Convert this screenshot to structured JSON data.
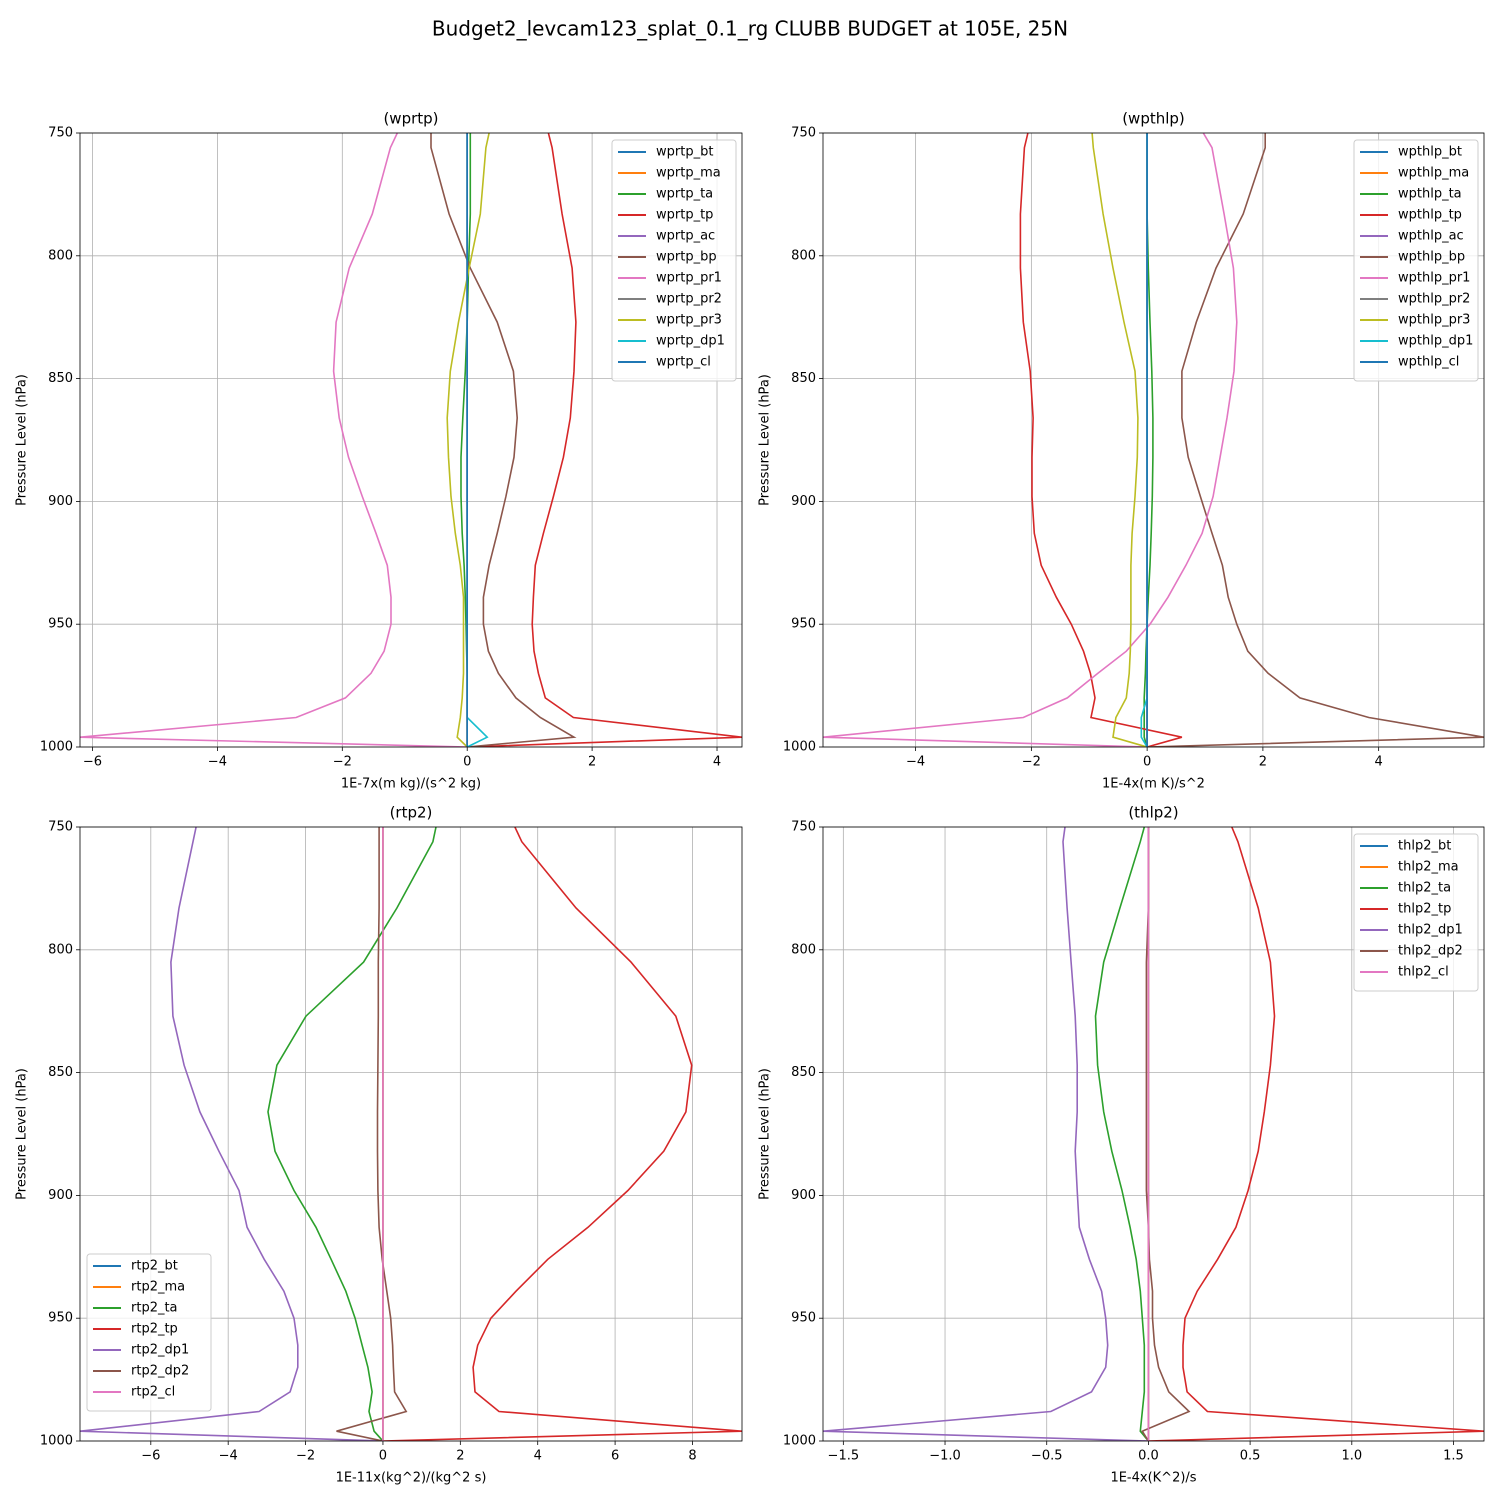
{
  "title": "Budget2_levcam123_splat_0.1_rg CLUBB BUDGET at 105E, 25N",
  "chart_data": [
    {
      "type": "line",
      "title": "(wprtp)",
      "xlabel": "1E-7x(m kg)/(s^2 kg)",
      "ylabel": "Pressure Level (hPa)",
      "grid": true,
      "legend": "upper right",
      "xlim": [
        -6.2,
        4.4
      ],
      "xticks": [
        {
          "value": -6,
          "label": "−6"
        },
        {
          "value": -4,
          "label": "−4"
        },
        {
          "value": -2,
          "label": "−2"
        },
        0,
        2,
        4
      ],
      "ylim": [
        1000,
        750
      ],
      "yticks": [
        750,
        800,
        850,
        900,
        950,
        1000
      ],
      "levels": [
        750,
        756,
        783,
        805,
        827,
        847,
        866,
        882,
        898,
        913,
        926,
        939,
        950,
        961,
        970,
        980,
        988,
        996,
        1000
      ],
      "series": [
        {
          "name": "wprtp_bt",
          "color": "#1f77b4",
          "values": [
            0,
            0,
            0,
            0,
            0,
            0,
            0,
            0,
            0,
            0,
            0,
            0,
            0,
            0,
            0,
            0,
            0,
            0,
            0
          ]
        },
        {
          "name": "wprtp_ma",
          "color": "#ff7f0e",
          "values": [
            0,
            0,
            0,
            0,
            0,
            0,
            0,
            0,
            0,
            0,
            0,
            0,
            0,
            0,
            0,
            0,
            0,
            0,
            0
          ]
        },
        {
          "name": "wprtp_ta",
          "color": "#2ca02c",
          "values": [
            0.05,
            0.05,
            0.05,
            0.02,
            0,
            -0.03,
            -0.07,
            -0.1,
            -0.1,
            -0.08,
            -0.05,
            -0.03,
            -0.02,
            -0.01,
            0,
            0,
            0,
            0,
            0
          ]
        },
        {
          "name": "wprtp_tp",
          "color": "#d62728",
          "values": [
            1.3,
            1.36,
            1.52,
            1.68,
            1.74,
            1.71,
            1.65,
            1.54,
            1.38,
            1.22,
            1.09,
            1.06,
            1.04,
            1.07,
            1.14,
            1.25,
            1.7,
            4.4,
            0
          ]
        },
        {
          "name": "wprtp_ac",
          "color": "#9467bd",
          "values": [
            0,
            0,
            0,
            0,
            0,
            0,
            0,
            0,
            0,
            0,
            0,
            0,
            0,
            0,
            0,
            0,
            0,
            0,
            0
          ]
        },
        {
          "name": "wprtp_bp",
          "color": "#8c564b",
          "values": [
            -0.58,
            -0.58,
            -0.29,
            0.05,
            0.48,
            0.74,
            0.8,
            0.75,
            0.62,
            0.48,
            0.35,
            0.26,
            0.26,
            0.34,
            0.5,
            0.78,
            1.17,
            1.71,
            0
          ]
        },
        {
          "name": "wprtp_pr1",
          "color": "#e377c2",
          "values": [
            -1.12,
            -1.23,
            -1.52,
            -1.89,
            -2.1,
            -2.14,
            -2.05,
            -1.9,
            -1.68,
            -1.46,
            -1.28,
            -1.22,
            -1.22,
            -1.33,
            -1.54,
            -1.95,
            -2.74,
            -6.2,
            0
          ]
        },
        {
          "name": "wprtp_pr2",
          "color": "#7f7f7f",
          "values": [
            0,
            0,
            0,
            0,
            0,
            0,
            0,
            0,
            0,
            0,
            0,
            0,
            0,
            0,
            0,
            0,
            0,
            0,
            0
          ]
        },
        {
          "name": "wprtp_pr3",
          "color": "#bcbd22",
          "values": [
            0.35,
            0.3,
            0.21,
            0.03,
            -0.14,
            -0.27,
            -0.32,
            -0.3,
            -0.26,
            -0.19,
            -0.11,
            -0.06,
            -0.06,
            -0.06,
            -0.06,
            -0.08,
            -0.11,
            -0.16,
            0
          ]
        },
        {
          "name": "wprtp_dp1",
          "color": "#17becf",
          "values": [
            0,
            0,
            0,
            0,
            0,
            0,
            0,
            0,
            0,
            0,
            0,
            0,
            0,
            0,
            0,
            0,
            0,
            0.32,
            0
          ]
        },
        {
          "name": "wprtp_cl",
          "color": "#1f77b4",
          "values": [
            0,
            0,
            0,
            0,
            0,
            0,
            0,
            0,
            0,
            0,
            0,
            0,
            0,
            0,
            0,
            0,
            0,
            0,
            0
          ]
        }
      ]
    },
    {
      "type": "line",
      "title": "(wpthlp)",
      "xlabel": "1E-4x(m K)/s^2",
      "ylabel": "Pressure Level (hPa)",
      "grid": true,
      "legend": "upper right",
      "xlim": [
        -5.6,
        5.82
      ],
      "xticks": [
        {
          "value": -4,
          "label": "−4"
        },
        {
          "value": -2,
          "label": "−2"
        },
        0,
        2,
        4
      ],
      "ylim": [
        1000,
        750
      ],
      "yticks": [
        750,
        800,
        850,
        900,
        950,
        1000
      ],
      "levels": [
        750,
        756,
        783,
        805,
        827,
        847,
        866,
        882,
        898,
        913,
        926,
        939,
        950,
        961,
        970,
        980,
        988,
        996,
        1000
      ],
      "series": [
        {
          "name": "wpthlp_bt",
          "color": "#1f77b4",
          "values": [
            0,
            0,
            0,
            0,
            0,
            0,
            0,
            0,
            0,
            0,
            0,
            0,
            0,
            0,
            0,
            0,
            0,
            0,
            0
          ]
        },
        {
          "name": "wpthlp_ma",
          "color": "#ff7f0e",
          "values": [
            0,
            0,
            0,
            0,
            0,
            0,
            0,
            0,
            0,
            0,
            0,
            0,
            0,
            0,
            0,
            0,
            0,
            0,
            0
          ]
        },
        {
          "name": "wpthlp_ta",
          "color": "#2ca02c",
          "values": [
            0,
            0,
            0,
            0.02,
            0.05,
            0.08,
            0.1,
            0.1,
            0.09,
            0.07,
            0.05,
            0.02,
            0,
            -0.02,
            -0.03,
            -0.05,
            -0.05,
            -0.05,
            0
          ]
        },
        {
          "name": "wpthlp_tp",
          "color": "#d62728",
          "values": [
            -2.06,
            -2.12,
            -2.19,
            -2.19,
            -2.14,
            -2.02,
            -1.97,
            -1.99,
            -1.99,
            -1.95,
            -1.83,
            -1.57,
            -1.31,
            -1.1,
            -0.98,
            -0.9,
            -0.97,
            0.6,
            0
          ]
        },
        {
          "name": "wpthlp_ac",
          "color": "#9467bd",
          "values": [
            0,
            0,
            0,
            0,
            0,
            0,
            0,
            0,
            0,
            0,
            0,
            0,
            0,
            0,
            0,
            0,
            0,
            0,
            0
          ]
        },
        {
          "name": "wpthlp_bp",
          "color": "#8c564b",
          "values": [
            2.04,
            2.04,
            1.66,
            1.19,
            0.85,
            0.6,
            0.6,
            0.71,
            0.92,
            1.12,
            1.3,
            1.4,
            1.55,
            1.74,
            2.09,
            2.64,
            3.83,
            5.82,
            0
          ]
        },
        {
          "name": "wpthlp_pr1",
          "color": "#e377c2",
          "values": [
            0.97,
            1.12,
            1.33,
            1.49,
            1.55,
            1.5,
            1.38,
            1.26,
            1.14,
            0.95,
            0.67,
            0.36,
            0.05,
            -0.36,
            -0.85,
            -1.38,
            -2.14,
            -5.6,
            0
          ]
        },
        {
          "name": "wpthlp_pr2",
          "color": "#7f7f7f",
          "values": [
            0,
            0,
            0,
            0,
            0,
            0,
            0,
            0,
            0,
            0,
            0,
            0,
            0,
            0,
            0,
            0,
            0,
            0,
            0
          ]
        },
        {
          "name": "wpthlp_pr3",
          "color": "#bcbd22",
          "values": [
            -0.95,
            -0.93,
            -0.76,
            -0.59,
            -0.4,
            -0.21,
            -0.16,
            -0.17,
            -0.21,
            -0.26,
            -0.28,
            -0.28,
            -0.28,
            -0.29,
            -0.31,
            -0.36,
            -0.54,
            -0.59,
            0
          ]
        },
        {
          "name": "wpthlp_dp1",
          "color": "#17becf",
          "values": [
            0,
            0,
            0,
            0,
            0,
            0,
            0,
            0,
            0,
            0,
            0,
            0,
            0,
            0,
            0,
            0,
            -0.1,
            -0.1,
            0
          ]
        },
        {
          "name": "wpthlp_cl",
          "color": "#1f77b4",
          "values": [
            0,
            0,
            0,
            0,
            0,
            0,
            0,
            0,
            0,
            0,
            0,
            0,
            0,
            0,
            0,
            0,
            0,
            0,
            0
          ]
        }
      ]
    },
    {
      "type": "line",
      "title": "(rtp2)",
      "xlabel": "1E-11x(kg^2)/(kg^2 s)",
      "ylabel": "Pressure Level (hPa)",
      "grid": true,
      "legend": "lower left",
      "xlim": [
        -7.83,
        9.28
      ],
      "xticks": [
        {
          "value": -6,
          "label": "−6"
        },
        {
          "value": -4,
          "label": "−4"
        },
        {
          "value": -2,
          "label": "−2"
        },
        0,
        2,
        4,
        6,
        8
      ],
      "ylim": [
        1000,
        750
      ],
      "yticks": [
        750,
        800,
        850,
        900,
        950,
        1000
      ],
      "levels": [
        750,
        756,
        783,
        805,
        827,
        847,
        866,
        882,
        898,
        913,
        926,
        939,
        950,
        961,
        970,
        980,
        988,
        996,
        1000
      ],
      "series": [
        {
          "name": "rtp2_bt",
          "color": "#1f77b4",
          "values": [
            0,
            0,
            0,
            0,
            0,
            0,
            0,
            0,
            0,
            0,
            0,
            0,
            0,
            0,
            0,
            0,
            0,
            0,
            0
          ]
        },
        {
          "name": "rtp2_ma",
          "color": "#ff7f0e",
          "values": [
            0,
            0,
            0,
            0,
            0,
            0,
            0,
            0,
            0,
            0,
            0,
            0,
            0,
            0,
            0,
            0,
            0,
            0,
            0
          ]
        },
        {
          "name": "rtp2_ta",
          "color": "#2ca02c",
          "values": [
            1.37,
            1.29,
            0.36,
            -0.5,
            -1.99,
            -2.74,
            -2.97,
            -2.79,
            -2.3,
            -1.73,
            -1.34,
            -0.96,
            -0.72,
            -0.54,
            -0.39,
            -0.28,
            -0.36,
            -0.23,
            0
          ]
        },
        {
          "name": "rtp2_tp",
          "color": "#d62728",
          "values": [
            3.41,
            3.59,
            4.99,
            6.41,
            7.57,
            7.98,
            7.83,
            7.26,
            6.33,
            5.3,
            4.26,
            3.44,
            2.79,
            2.45,
            2.33,
            2.38,
            3.0,
            9.28,
            0
          ]
        },
        {
          "name": "rtp2_dp1",
          "color": "#9467bd",
          "values": [
            -4.83,
            -4.91,
            -5.27,
            -5.48,
            -5.43,
            -5.14,
            -4.73,
            -4.24,
            -3.72,
            -3.51,
            -3.07,
            -2.56,
            -2.3,
            -2.2,
            -2.2,
            -2.4,
            -3.2,
            -7.83,
            0
          ]
        },
        {
          "name": "rtp2_dp2",
          "color": "#8c564b",
          "values": [
            -0.1,
            -0.1,
            -0.1,
            -0.12,
            -0.12,
            -0.13,
            -0.14,
            -0.14,
            -0.13,
            -0.1,
            -0.02,
            0.1,
            0.2,
            0.25,
            0.27,
            0.3,
            0.6,
            -1.2,
            0
          ]
        },
        {
          "name": "rtp2_cl",
          "color": "#e377c2",
          "values": [
            0,
            0,
            0,
            0,
            0,
            0,
            0,
            0,
            0,
            0,
            0,
            0,
            0,
            0,
            0,
            0,
            0,
            0,
            0
          ]
        }
      ]
    },
    {
      "type": "line",
      "title": "(thlp2)",
      "xlabel": "1E-4x(K^2)/s",
      "ylabel": "Pressure Level (hPa)",
      "grid": true,
      "legend": "upper right",
      "xlim": [
        -1.6,
        1.65
      ],
      "xticks": [
        {
          "value": -1.5,
          "label": "−1.5"
        },
        {
          "value": -1,
          "label": "−1.0"
        },
        {
          "value": -0.5,
          "label": "−0.5"
        },
        {
          "value": 0,
          "label": "0.0"
        },
        0.5,
        {
          "value": 1,
          "label": "1.0"
        },
        1.5
      ],
      "ylim": [
        1000,
        750
      ],
      "yticks": [
        750,
        800,
        850,
        900,
        950,
        1000
      ],
      "levels": [
        750,
        756,
        783,
        805,
        827,
        847,
        866,
        882,
        898,
        913,
        926,
        939,
        950,
        961,
        970,
        980,
        988,
        996,
        1000
      ],
      "series": [
        {
          "name": "thlp2_bt",
          "color": "#1f77b4",
          "values": [
            0,
            0,
            0,
            0,
            0,
            0,
            0,
            0,
            0,
            0,
            0,
            0,
            0,
            0,
            0,
            0,
            0,
            0,
            0
          ]
        },
        {
          "name": "thlp2_ma",
          "color": "#ff7f0e",
          "values": [
            0,
            0,
            0,
            0,
            0,
            0,
            0,
            0,
            0,
            0,
            0,
            0,
            0,
            0,
            0,
            0,
            0,
            0,
            0
          ]
        },
        {
          "name": "thlp2_ta",
          "color": "#2ca02c",
          "values": [
            -0.02,
            -0.04,
            -0.14,
            -0.22,
            -0.26,
            -0.25,
            -0.22,
            -0.18,
            -0.13,
            -0.09,
            -0.06,
            -0.04,
            -0.03,
            -0.02,
            -0.02,
            -0.02,
            -0.03,
            -0.04,
            0
          ]
        },
        {
          "name": "thlp2_tp",
          "color": "#d62728",
          "values": [
            0.41,
            0.44,
            0.54,
            0.6,
            0.62,
            0.6,
            0.57,
            0.54,
            0.49,
            0.43,
            0.34,
            0.24,
            0.18,
            0.17,
            0.17,
            0.19,
            0.29,
            1.65,
            0
          ]
        },
        {
          "name": "thlp2_dp1",
          "color": "#9467bd",
          "values": [
            -0.41,
            -0.42,
            -0.4,
            -0.38,
            -0.36,
            -0.35,
            -0.35,
            -0.36,
            -0.35,
            -0.34,
            -0.29,
            -0.23,
            -0.21,
            -0.2,
            -0.21,
            -0.28,
            -0.48,
            -1.6,
            0
          ]
        },
        {
          "name": "thlp2_dp2",
          "color": "#8c564b",
          "values": [
            0,
            0,
            0,
            -0.01,
            -0.01,
            -0.01,
            -0.01,
            -0.01,
            -0.01,
            0,
            0.005,
            0.02,
            0.02,
            0.03,
            0.05,
            0.1,
            0.2,
            -0.03,
            0
          ]
        },
        {
          "name": "thlp2_cl",
          "color": "#e377c2",
          "values": [
            0,
            0,
            0,
            0,
            0,
            0,
            0,
            0,
            0,
            0,
            0,
            0,
            0,
            0,
            0,
            0,
            0,
            0,
            0
          ]
        }
      ]
    }
  ]
}
